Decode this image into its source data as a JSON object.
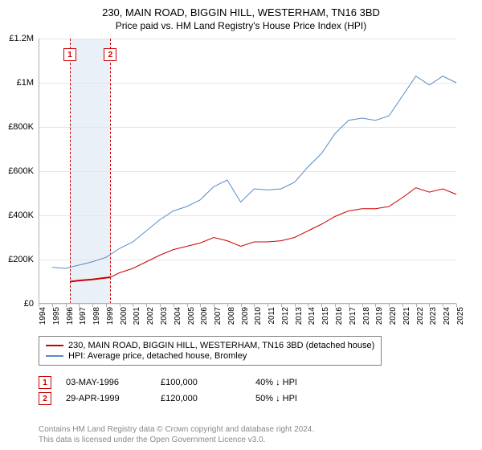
{
  "title_line1": "230, MAIN ROAD, BIGGIN HILL, WESTERHAM, TN16 3BD",
  "title_line2": "Price paid vs. HM Land Registry's House Price Index (HPI)",
  "chart": {
    "type": "line",
    "x_min": 1994,
    "x_max": 2025,
    "x_ticks": [
      1994,
      1995,
      1996,
      1997,
      1998,
      1999,
      2000,
      2001,
      2002,
      2003,
      2004,
      2005,
      2006,
      2007,
      2008,
      2009,
      2010,
      2011,
      2012,
      2013,
      2014,
      2015,
      2016,
      2017,
      2018,
      2019,
      2020,
      2021,
      2022,
      2023,
      2024,
      2025
    ],
    "y_min": 0,
    "y_max": 1200000,
    "y_ticks": [
      {
        "v": 0,
        "label": "£0"
      },
      {
        "v": 200000,
        "label": "£200K"
      },
      {
        "v": 400000,
        "label": "£400K"
      },
      {
        "v": 600000,
        "label": "£600K"
      },
      {
        "v": 800000,
        "label": "£800K"
      },
      {
        "v": 1000000,
        "label": "£1M"
      },
      {
        "v": 1200000,
        "label": "£1.2M"
      }
    ],
    "background_color": "#ffffff",
    "grid_color": "#e5e5e5",
    "axis_color": "#b0b0b0",
    "price_band": {
      "from": 1996.33,
      "to": 1999.33,
      "color": "#eaf0f8"
    },
    "series": [
      {
        "name": "price_paid",
        "color": "#cc0000",
        "width": 2,
        "data": [
          [
            1996.33,
            100000
          ],
          [
            1997,
            105000
          ],
          [
            1998,
            110000
          ],
          [
            1999.33,
            120000
          ]
        ]
      },
      {
        "name": "hpi_extend",
        "color": "#cc0000",
        "width": 1,
        "data": [
          [
            1999.33,
            120000
          ],
          [
            2000,
            140000
          ],
          [
            2001,
            160000
          ],
          [
            2002,
            190000
          ],
          [
            2003,
            220000
          ],
          [
            2004,
            245000
          ],
          [
            2005,
            260000
          ],
          [
            2006,
            275000
          ],
          [
            2007,
            300000
          ],
          [
            2008,
            285000
          ],
          [
            2009,
            260000
          ],
          [
            2010,
            280000
          ],
          [
            2011,
            280000
          ],
          [
            2012,
            285000
          ],
          [
            2013,
            300000
          ],
          [
            2014,
            330000
          ],
          [
            2015,
            360000
          ],
          [
            2016,
            395000
          ],
          [
            2017,
            420000
          ],
          [
            2018,
            430000
          ],
          [
            2019,
            430000
          ],
          [
            2020,
            440000
          ],
          [
            2021,
            480000
          ],
          [
            2022,
            525000
          ],
          [
            2023,
            505000
          ],
          [
            2024,
            520000
          ],
          [
            2025,
            495000
          ]
        ]
      },
      {
        "name": "hpi_avg",
        "color": "#5a8ac6",
        "width": 1,
        "data": [
          [
            1995,
            165000
          ],
          [
            1996,
            160000
          ],
          [
            1997,
            175000
          ],
          [
            1998,
            190000
          ],
          [
            1999,
            210000
          ],
          [
            2000,
            250000
          ],
          [
            2001,
            280000
          ],
          [
            2002,
            330000
          ],
          [
            2003,
            380000
          ],
          [
            2004,
            420000
          ],
          [
            2005,
            440000
          ],
          [
            2006,
            470000
          ],
          [
            2007,
            530000
          ],
          [
            2008,
            560000
          ],
          [
            2009,
            460000
          ],
          [
            2010,
            520000
          ],
          [
            2011,
            515000
          ],
          [
            2012,
            520000
          ],
          [
            2013,
            550000
          ],
          [
            2014,
            620000
          ],
          [
            2015,
            680000
          ],
          [
            2016,
            770000
          ],
          [
            2017,
            830000
          ],
          [
            2018,
            840000
          ],
          [
            2019,
            830000
          ],
          [
            2020,
            850000
          ],
          [
            2021,
            940000
          ],
          [
            2022,
            1030000
          ],
          [
            2023,
            990000
          ],
          [
            2024,
            1030000
          ],
          [
            2025,
            1000000
          ]
        ]
      }
    ],
    "markers": [
      {
        "n": "1",
        "x": 1996.33,
        "line_color": "#cc0000"
      },
      {
        "n": "2",
        "x": 1999.33,
        "line_color": "#cc0000"
      }
    ]
  },
  "legend": {
    "items": [
      {
        "color": "#cc0000",
        "label": "230, MAIN ROAD, BIGGIN HILL, WESTERHAM, TN16 3BD (detached house)"
      },
      {
        "color": "#5a8ac6",
        "label": "HPI: Average price, detached house, Bromley"
      }
    ]
  },
  "transactions": [
    {
      "n": "1",
      "date": "03-MAY-1996",
      "price": "£100,000",
      "delta": "40% ↓ HPI"
    },
    {
      "n": "2",
      "date": "29-APR-1999",
      "price": "£120,000",
      "delta": "50% ↓ HPI"
    }
  ],
  "footer_line1": "Contains HM Land Registry data © Crown copyright and database right 2024.",
  "footer_line2": "This data is licensed under the Open Government Licence v3.0."
}
